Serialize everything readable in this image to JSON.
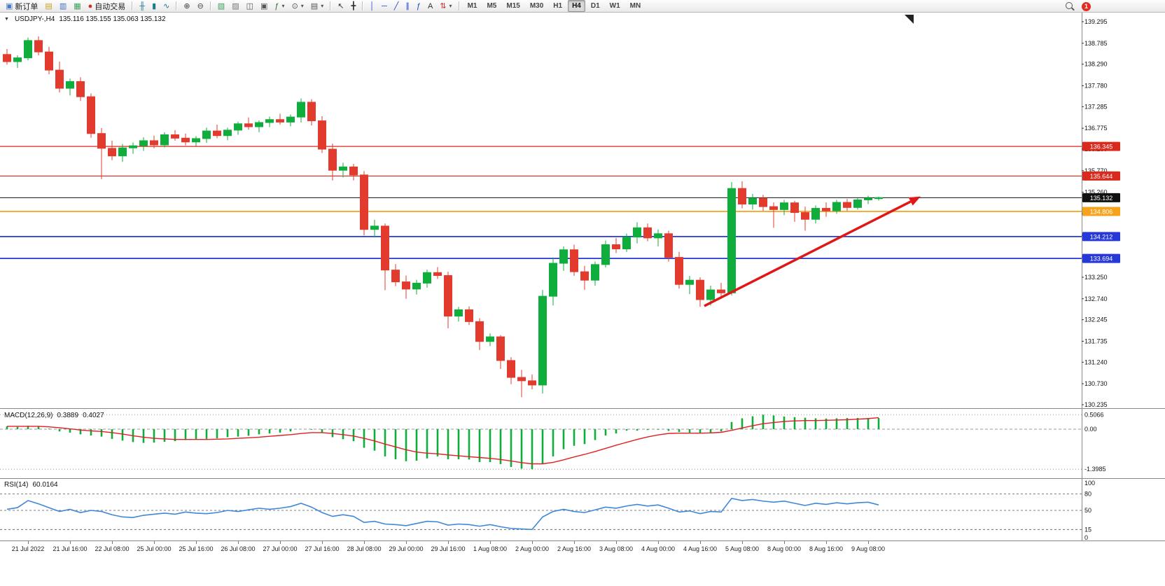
{
  "toolbar": {
    "items": [
      {
        "t": "btn",
        "name": "new-order-button",
        "icon": "new-order-icon",
        "label": "新订单"
      },
      {
        "t": "icon",
        "name": "charts-grid-button",
        "icon": "charts-grid-icon"
      },
      {
        "t": "icon",
        "name": "market-watch-button",
        "icon": "market-watch-icon"
      },
      {
        "t": "icon",
        "name": "data-window-button",
        "icon": "data-window-icon"
      },
      {
        "t": "btn",
        "name": "auto-trading-button",
        "icon": "auto-trading-icon",
        "label": "自动交易"
      },
      {
        "t": "sep"
      },
      {
        "t": "icon",
        "name": "ohlc-bars-button",
        "icon": "ohlc-bars-icon"
      },
      {
        "t": "icon",
        "name": "candlestick-button",
        "icon": "candlestick-icon"
      },
      {
        "t": "icon",
        "name": "line-chart-button",
        "icon": "line-chart-icon"
      },
      {
        "t": "sep"
      },
      {
        "t": "icon",
        "name": "zoom-in-button",
        "icon": "zoom-in-icon"
      },
      {
        "t": "icon",
        "name": "zoom-out-button",
        "icon": "zoom-out-icon"
      },
      {
        "t": "sep"
      },
      {
        "t": "icon",
        "name": "new-chart-button",
        "icon": "new-chart-icon"
      },
      {
        "t": "icon",
        "name": "profiles-button",
        "icon": "profiles-icon"
      },
      {
        "t": "icon",
        "name": "tile-windows-button",
        "icon": "tile-windows-icon"
      },
      {
        "t": "icon",
        "name": "cascade-windows-button",
        "icon": "cascade-windows-icon"
      },
      {
        "t": "drop",
        "name": "indicators-button",
        "icon": "indicators-icon"
      },
      {
        "t": "drop",
        "name": "periods-button",
        "icon": "periods-icon"
      },
      {
        "t": "drop",
        "name": "templates-button",
        "icon": "templates-icon"
      },
      {
        "t": "sep"
      },
      {
        "t": "icon",
        "name": "cursor-button",
        "icon": "cursor-icon"
      },
      {
        "t": "icon",
        "name": "crosshair-button",
        "icon": "crosshair-icon"
      },
      {
        "t": "sep"
      },
      {
        "t": "icon",
        "name": "vertical-line-button",
        "icon": "vertical-line-icon"
      },
      {
        "t": "icon",
        "name": "horizontal-line-button",
        "icon": "horizontal-line-icon"
      },
      {
        "t": "icon",
        "name": "trendline-button",
        "icon": "trendline-icon"
      },
      {
        "t": "icon",
        "name": "channel-button",
        "icon": "channel-icon"
      },
      {
        "t": "icon",
        "name": "fibonacci-button",
        "icon": "fibonacci-icon"
      },
      {
        "t": "icon",
        "name": "text-button",
        "icon": "text-icon"
      },
      {
        "t": "drop",
        "name": "arrows-button",
        "icon": "arrows-icon"
      },
      {
        "t": "sep"
      },
      {
        "t": "tfs"
      }
    ],
    "timeframes": [
      "M1",
      "M5",
      "M15",
      "M30",
      "H1",
      "H4",
      "D1",
      "W1",
      "MN"
    ],
    "active_timeframe": "H4",
    "notification_badge": "1"
  },
  "chart": {
    "title": "USDJPY-,H4",
    "ohlc": "135.116 135.155 135.063 135.132"
  },
  "chart_data": {
    "type": "candlestick",
    "symbol": "USDJPY-",
    "period": "H4",
    "current_bar": {
      "open": 135.116,
      "high": 135.155,
      "low": 135.063,
      "close": 135.132
    },
    "colors": {
      "up": "#0fae3c",
      "down": "#e23b2e",
      "rsi": "#3f87d9",
      "macd_hist": "#0fae3c",
      "macd_signal": "#e02020"
    },
    "price_axis": {
      "min": 130.235,
      "max": 139.295,
      "ticks": [
        "139.295",
        "138.785",
        "138.290",
        "137.780",
        "137.285",
        "136.775",
        "136.280",
        "135.770",
        "135.260",
        "134.750",
        "134.240",
        "133.730",
        "133.250",
        "132.740",
        "132.245",
        "131.735",
        "131.240",
        "130.730",
        "130.235"
      ]
    },
    "hlines": [
      {
        "price": 136.345,
        "label": "136.345",
        "color": "#da2a1e",
        "width": 1.2
      },
      {
        "price": 135.644,
        "label": "135.644",
        "color": "#da2a1e",
        "width": 1.2
      },
      {
        "price": 135.132,
        "label": "135.132",
        "color": "#111111",
        "width": 1.0
      },
      {
        "price": 134.806,
        "label": "134.806",
        "color": "#f5a21d",
        "width": 1.8
      },
      {
        "price": 134.212,
        "label": "134.212",
        "color": "#2638d8",
        "width": 1.8
      },
      {
        "price": 133.694,
        "label": "133.694",
        "color": "#2638d8",
        "width": 1.8
      }
    ],
    "candles": [
      [
        138.52,
        138.65,
        138.28,
        138.35
      ],
      [
        138.35,
        138.5,
        138.2,
        138.44
      ],
      [
        138.44,
        138.92,
        138.38,
        138.85
      ],
      [
        138.85,
        138.95,
        138.5,
        138.58
      ],
      [
        138.58,
        138.7,
        138.05,
        138.15
      ],
      [
        138.15,
        138.35,
        137.62,
        137.72
      ],
      [
        137.72,
        137.95,
        137.55,
        137.88
      ],
      [
        137.88,
        137.98,
        137.42,
        137.52
      ],
      [
        137.52,
        137.6,
        136.55,
        136.65
      ],
      [
        136.65,
        136.78,
        135.57,
        136.3
      ],
      [
        136.3,
        136.48,
        136.02,
        136.12
      ],
      [
        136.12,
        136.4,
        135.98,
        136.31
      ],
      [
        136.31,
        136.44,
        136.17,
        136.36
      ],
      [
        136.36,
        136.56,
        136.24,
        136.48
      ],
      [
        136.48,
        136.6,
        136.3,
        136.38
      ],
      [
        136.38,
        136.68,
        136.32,
        136.62
      ],
      [
        136.62,
        136.73,
        136.48,
        136.54
      ],
      [
        136.54,
        136.65,
        136.37,
        136.45
      ],
      [
        136.45,
        136.59,
        136.35,
        136.53
      ],
      [
        136.53,
        136.79,
        136.43,
        136.71
      ],
      [
        136.71,
        136.86,
        136.54,
        136.6
      ],
      [
        136.6,
        136.79,
        136.49,
        136.73
      ],
      [
        136.73,
        136.93,
        136.62,
        136.88
      ],
      [
        136.88,
        137.03,
        136.74,
        136.81
      ],
      [
        136.81,
        136.96,
        136.68,
        136.91
      ],
      [
        136.91,
        137.05,
        136.8,
        136.98
      ],
      [
        136.98,
        137.12,
        136.86,
        136.92
      ],
      [
        136.92,
        137.1,
        136.82,
        137.04
      ],
      [
        137.04,
        137.48,
        136.91,
        137.39
      ],
      [
        137.39,
        137.46,
        136.84,
        136.95
      ],
      [
        136.95,
        137.06,
        136.19,
        136.28
      ],
      [
        136.28,
        136.41,
        135.54,
        135.78
      ],
      [
        135.78,
        135.96,
        135.61,
        135.86
      ],
      [
        135.86,
        135.93,
        135.54,
        135.67
      ],
      [
        135.67,
        135.76,
        134.24,
        134.38
      ],
      [
        134.38,
        134.61,
        134.19,
        134.46
      ],
      [
        134.46,
        134.52,
        132.94,
        133.42
      ],
      [
        133.42,
        133.56,
        133.04,
        133.14
      ],
      [
        133.14,
        133.29,
        132.74,
        132.97
      ],
      [
        132.97,
        133.19,
        132.84,
        133.11
      ],
      [
        133.11,
        133.43,
        133.0,
        133.36
      ],
      [
        133.36,
        133.49,
        133.21,
        133.29
      ],
      [
        133.29,
        133.38,
        132.04,
        132.33
      ],
      [
        132.33,
        132.55,
        132.2,
        132.48
      ],
      [
        132.48,
        132.56,
        132.12,
        132.2
      ],
      [
        132.2,
        132.28,
        131.53,
        131.73
      ],
      [
        131.73,
        131.92,
        131.62,
        131.84
      ],
      [
        131.84,
        131.88,
        131.08,
        131.28
      ],
      [
        131.28,
        131.36,
        130.72,
        130.88
      ],
      [
        130.88,
        131.06,
        130.41,
        130.8
      ],
      [
        130.8,
        130.95,
        130.6,
        130.7
      ],
      [
        130.7,
        132.95,
        130.5,
        132.8
      ],
      [
        132.8,
        133.72,
        132.58,
        133.58
      ],
      [
        133.58,
        133.98,
        133.4,
        133.9
      ],
      [
        133.9,
        134.02,
        133.28,
        133.38
      ],
      [
        133.38,
        133.52,
        132.95,
        133.18
      ],
      [
        133.18,
        133.62,
        133.05,
        133.55
      ],
      [
        133.55,
        134.12,
        133.48,
        134.02
      ],
      [
        134.02,
        134.18,
        133.82,
        133.92
      ],
      [
        133.92,
        134.28,
        133.85,
        134.2
      ],
      [
        134.2,
        134.55,
        134.05,
        134.42
      ],
      [
        134.42,
        134.52,
        134.1,
        134.18
      ],
      [
        134.18,
        134.38,
        133.98,
        134.28
      ],
      [
        134.28,
        134.35,
        133.62,
        133.72
      ],
      [
        133.72,
        133.85,
        132.98,
        133.08
      ],
      [
        133.08,
        133.28,
        132.85,
        133.18
      ],
      [
        133.18,
        133.25,
        132.55,
        132.72
      ],
      [
        132.72,
        133.05,
        132.58,
        132.95
      ],
      [
        132.95,
        133.12,
        132.75,
        132.88
      ],
      [
        132.88,
        135.5,
        132.82,
        135.35
      ],
      [
        135.35,
        135.52,
        134.88,
        134.98
      ],
      [
        134.98,
        135.22,
        134.85,
        135.12
      ],
      [
        135.12,
        135.2,
        134.82,
        134.92
      ],
      [
        134.92,
        135.02,
        134.42,
        134.85
      ],
      [
        134.85,
        135.08,
        134.72,
        135.01
      ],
      [
        135.01,
        135.06,
        134.56,
        134.78
      ],
      [
        134.78,
        134.92,
        134.35,
        134.62
      ],
      [
        134.62,
        134.95,
        134.52,
        134.88
      ],
      [
        134.88,
        135.02,
        134.68,
        134.82
      ],
      [
        134.82,
        135.08,
        134.75,
        135.02
      ],
      [
        135.02,
        135.1,
        134.82,
        134.9
      ],
      [
        134.9,
        135.12,
        134.85,
        135.08
      ],
      [
        135.08,
        135.18,
        134.98,
        135.12
      ],
      [
        135.116,
        135.155,
        135.063,
        135.132
      ]
    ],
    "time_labels": {
      "start_index": 2,
      "step": 4,
      "labels": [
        "21 Jul 2022",
        "21 Jul 16:00",
        "22 Jul 08:00",
        "25 Jul 00:00",
        "25 Jul 16:00",
        "26 Jul 08:00",
        "27 Jul 00:00",
        "27 Jul 16:00",
        "28 Jul 08:00",
        "29 Jul 00:00",
        "29 Jul 16:00",
        "1 Aug 08:00",
        "2 Aug 00:00",
        "2 Aug 16:00",
        "3 Aug 08:00",
        "4 Aug 00:00",
        "4 Aug 16:00",
        "5 Aug 08:00",
        "8 Aug 00:00",
        "8 Aug 16:00",
        "9 Aug 08:00"
      ]
    },
    "trend_arrow": {
      "from_index": 66.4,
      "from_price": 132.57,
      "to_index": 87,
      "to_price": 135.16,
      "color": "#e01717",
      "width": 3.5
    },
    "macd": {
      "label": "MACD(12,26,9)",
      "value": "0.3889",
      "signal_value": "0.4027",
      "scale": {
        "max": 0.5066,
        "min": -1.3985,
        "ticks": [
          {
            "v": 0.5066,
            "label": "0.5066"
          },
          {
            "v": 0,
            "label": "0.00"
          },
          {
            "v": -1.3985,
            "label": "-1.3985"
          }
        ]
      },
      "hist": [
        0.1,
        0.08,
        0.12,
        0.1,
        0.02,
        -0.08,
        -0.12,
        -0.18,
        -0.22,
        -0.26,
        -0.34,
        -0.4,
        -0.45,
        -0.48,
        -0.47,
        -0.44,
        -0.42,
        -0.38,
        -0.35,
        -0.34,
        -0.32,
        -0.28,
        -0.26,
        -0.23,
        -0.18,
        -0.15,
        -0.12,
        -0.08,
        0.0,
        -0.02,
        -0.12,
        -0.28,
        -0.35,
        -0.42,
        -0.65,
        -0.75,
        -0.95,
        -1.05,
        -1.12,
        -1.1,
        -1.02,
        -0.95,
        -1.05,
        -1.05,
        -1.06,
        -1.15,
        -1.15,
        -1.22,
        -1.32,
        -1.38,
        -1.3985,
        -1.22,
        -0.95,
        -0.7,
        -0.58,
        -0.52,
        -0.38,
        -0.22,
        -0.15,
        -0.05,
        -0.05,
        -0.03,
        -0.02,
        -0.06,
        -0.1,
        -0.12,
        -0.14,
        -0.12,
        -0.08,
        0.25,
        0.38,
        0.45,
        0.5066,
        0.48,
        0.44,
        0.42,
        0.4,
        0.38,
        0.37,
        0.38,
        0.39,
        0.39,
        0.39,
        0.3889
      ],
      "signal": [
        0.1,
        0.1,
        0.1,
        0.1,
        0.08,
        0.05,
        0.01,
        -0.03,
        -0.06,
        -0.08,
        -0.12,
        -0.17,
        -0.23,
        -0.28,
        -0.32,
        -0.34,
        -0.36,
        -0.36,
        -0.36,
        -0.36,
        -0.35,
        -0.34,
        -0.32,
        -0.3,
        -0.28,
        -0.25,
        -0.22,
        -0.19,
        -0.15,
        -0.12,
        -0.12,
        -0.15,
        -0.19,
        -0.24,
        -0.32,
        -0.41,
        -0.52,
        -0.62,
        -0.72,
        -0.8,
        -0.84,
        -0.86,
        -0.9,
        -0.93,
        -0.96,
        -0.99,
        -1.02,
        -1.06,
        -1.11,
        -1.17,
        -1.21,
        -1.21,
        -1.16,
        -1.07,
        -0.97,
        -0.88,
        -0.78,
        -0.67,
        -0.56,
        -0.46,
        -0.36,
        -0.27,
        -0.2,
        -0.15,
        -0.14,
        -0.14,
        -0.14,
        -0.13,
        -0.11,
        -0.04,
        0.04,
        0.12,
        0.19,
        0.23,
        0.27,
        0.29,
        0.3,
        0.3,
        0.31,
        0.32,
        0.33,
        0.35,
        0.37,
        0.4027
      ]
    },
    "rsi": {
      "label": "RSI(14)",
      "value": "60.0164",
      "levels": [
        80,
        50,
        15
      ],
      "ticks": [
        {
          "v": 100,
          "label": "100"
        },
        {
          "v": 80,
          "label": "80"
        },
        {
          "v": 50,
          "label": "50"
        },
        {
          "v": 15,
          "label": "15"
        },
        {
          "v": 0,
          "label": "0"
        }
      ],
      "values": [
        52,
        55,
        68,
        62,
        55,
        48,
        52,
        46,
        50,
        48,
        42,
        38,
        37,
        41,
        43,
        45,
        43,
        47,
        45,
        44,
        46,
        50,
        48,
        51,
        54,
        52,
        54,
        57,
        63,
        56,
        46,
        39,
        42,
        39,
        28,
        30,
        25,
        24,
        22,
        26,
        30,
        29,
        23,
        25,
        24,
        21,
        24,
        20,
        17,
        16,
        15,
        38,
        48,
        52,
        48,
        46,
        51,
        56,
        54,
        58,
        61,
        58,
        60,
        54,
        47,
        49,
        44,
        48,
        47,
        72,
        68,
        70,
        67,
        65,
        67,
        63,
        59,
        63,
        61,
        64,
        62,
        64,
        65,
        60.0164
      ]
    }
  }
}
